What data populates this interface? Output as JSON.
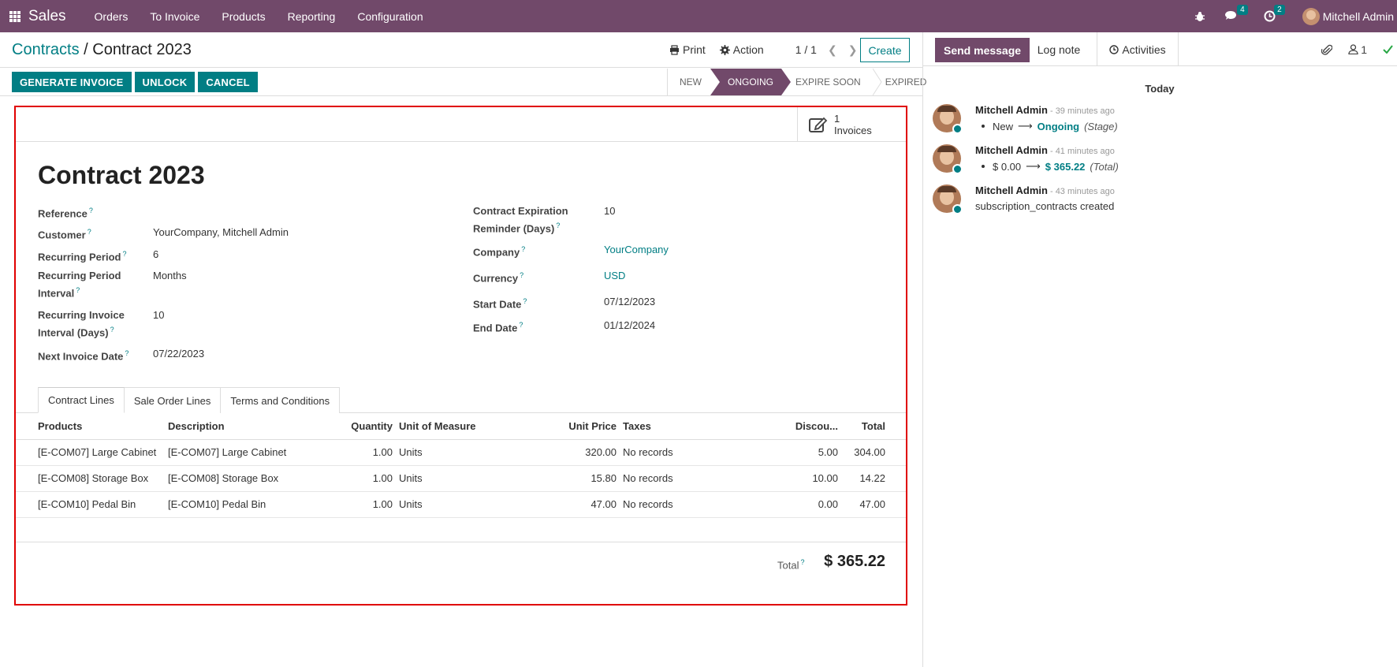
{
  "navbar": {
    "app_name": "Sales",
    "menu": [
      "Orders",
      "To Invoice",
      "Products",
      "Reporting",
      "Configuration"
    ],
    "messages_count": "4",
    "activities_count": "2",
    "user_name": "Mitchell Admin"
  },
  "control_panel": {
    "breadcrumb_parent": "Contracts",
    "breadcrumb_separator": "/",
    "breadcrumb_current": "Contract 2023",
    "print_label": "Print",
    "action_label": "Action",
    "pager": "1 / 1",
    "create_label": "Create"
  },
  "header_buttons": [
    "GENERATE INVOICE",
    "UNLOCK",
    "CANCEL"
  ],
  "stages": [
    {
      "label": "NEW",
      "active": false
    },
    {
      "label": "ONGOING",
      "active": true
    },
    {
      "label": "EXPIRE SOON",
      "active": false
    },
    {
      "label": "EXPIRED",
      "active": false
    }
  ],
  "smart_button": {
    "count": "1",
    "label": "Invoices"
  },
  "form": {
    "title": "Contract 2023",
    "left": {
      "reference_label": "Reference",
      "reference_value": "",
      "customer_label": "Customer",
      "customer_value": "YourCompany, Mitchell Admin",
      "recurring_period_label": "Recurring Period",
      "recurring_period_value": "6",
      "recurring_interval_label_1": "Recurring Period",
      "recurring_interval_label_2": "Interval",
      "recurring_interval_value": "Months",
      "invoice_interval_label_1": "Recurring Invoice",
      "invoice_interval_label_2": "Interval (Days)",
      "invoice_interval_value": "10",
      "next_invoice_label": "Next Invoice Date",
      "next_invoice_value": "07/22/2023"
    },
    "right": {
      "expiration_label_1": "Contract Expiration",
      "expiration_label_2": "Reminder (Days)",
      "expiration_value": "10",
      "company_label": "Company",
      "company_value": "YourCompany",
      "currency_label": "Currency",
      "currency_value": "USD",
      "start_label": "Start Date",
      "start_value": "07/12/2023",
      "end_label": "End Date",
      "end_value": "01/12/2024"
    },
    "help_mark": "?"
  },
  "tabs": [
    "Contract Lines",
    "Sale Order Lines",
    "Terms and Conditions"
  ],
  "lines": {
    "headers": {
      "products": "Products",
      "description": "Description",
      "quantity": "Quantity",
      "uom": "Unit of Measure",
      "unit_price": "Unit Price",
      "taxes": "Taxes",
      "discount": "Discou...",
      "total": "Total"
    },
    "rows": [
      {
        "product": "[E-COM07] Large Cabinet",
        "description": "[E-COM07] Large Cabinet",
        "quantity": "1.00",
        "uom": "Units",
        "unit_price": "320.00",
        "taxes": "No records",
        "discount": "5.00",
        "total": "304.00"
      },
      {
        "product": "[E-COM08] Storage Box",
        "description": "[E-COM08] Storage Box",
        "quantity": "1.00",
        "uom": "Units",
        "unit_price": "15.80",
        "taxes": "No records",
        "discount": "10.00",
        "total": "14.22"
      },
      {
        "product": "[E-COM10] Pedal Bin",
        "description": "[E-COM10] Pedal Bin",
        "quantity": "1.00",
        "uom": "Units",
        "unit_price": "47.00",
        "taxes": "No records",
        "discount": "0.00",
        "total": "47.00"
      }
    ],
    "total_label": "Total",
    "total_value": "$ 365.22"
  },
  "chatter": {
    "send_message": "Send message",
    "log_note": "Log note",
    "activities": "Activities",
    "followers_count": "1",
    "today": "Today",
    "messages": [
      {
        "author": "Mitchell Admin",
        "time": "- 39 minutes ago",
        "old": "New",
        "new": "Ongoing",
        "field": "(Stage)"
      },
      {
        "author": "Mitchell Admin",
        "time": "- 41 minutes ago",
        "old": "$ 0.00",
        "new": "$ 365.22",
        "field": "(Total)"
      },
      {
        "author": "Mitchell Admin",
        "time": "- 43 minutes ago",
        "body": "subscription_contracts created"
      }
    ]
  },
  "colors": {
    "brand": "#71496a",
    "accent": "#017e84",
    "highlight_border": "#e00000"
  }
}
